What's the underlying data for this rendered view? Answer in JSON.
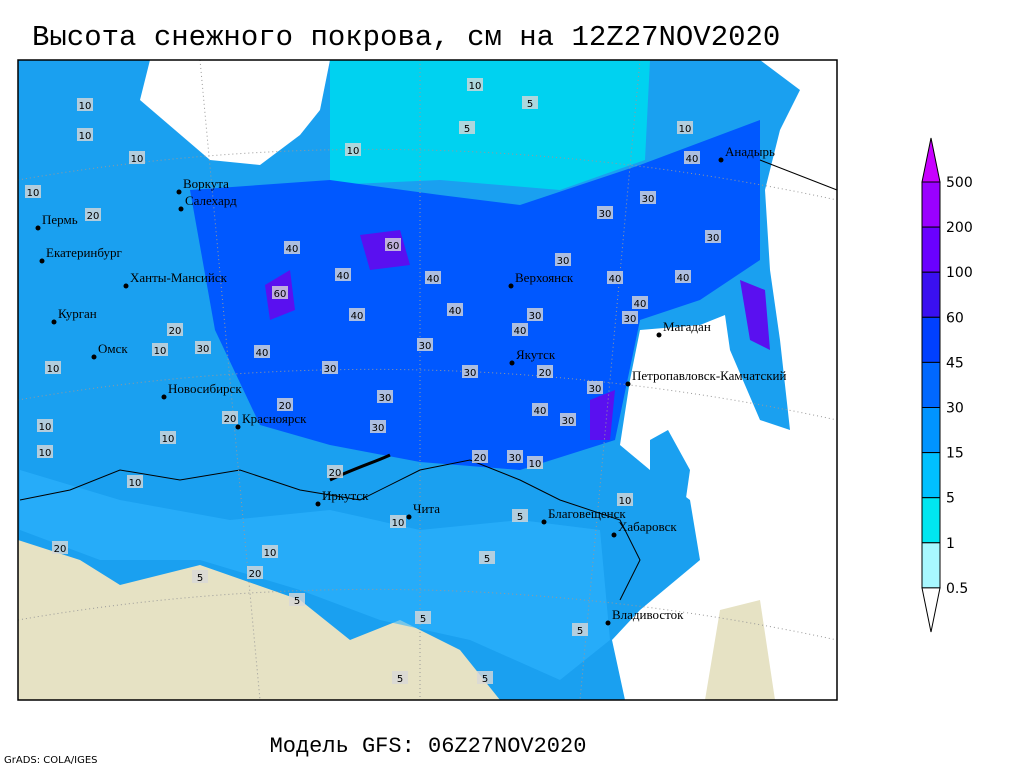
{
  "title": "Высота снежного покрова, см на 12Z27NOV2020",
  "model": "Модель GFS: 06Z27NOV2020",
  "credit": "GrADS: COLA/IGES",
  "cities": [
    "Воркута",
    "Салехард",
    "Пермь",
    "Екатеринбург",
    "Ханты-Мансийск",
    "Курган",
    "Омск",
    "Новосибирск",
    "Красноярск",
    "Иркутск",
    "Чита",
    "Благовещенск",
    "Хабаровск",
    "Владивосток",
    "Якутск",
    "Верхоянск",
    "Магадан",
    "Петропавловск-Камчатский",
    "Анадырь"
  ],
  "contour_labels": [
    10,
    10,
    10,
    10,
    20,
    10,
    5,
    5,
    10,
    30,
    30,
    40,
    10,
    30,
    40,
    60,
    40,
    40,
    30,
    40,
    40,
    60,
    40,
    40,
    30,
    40,
    40,
    30,
    20,
    30,
    10,
    40,
    30,
    30,
    20,
    30,
    10,
    20,
    30,
    30,
    40,
    30,
    30,
    10,
    20,
    10,
    10,
    20,
    30,
    10,
    20,
    10,
    5,
    10,
    5,
    5,
    20,
    10,
    5,
    5,
    5,
    5,
    5,
    20,
    10
  ],
  "colorbar": {
    "levels": [
      500,
      200,
      100,
      60,
      45,
      30,
      15,
      5,
      1,
      0.5
    ],
    "colors": [
      "#c800ff",
      "#9a00ff",
      "#6a00ff",
      "#3a10f0",
      "#0040ff",
      "#0068ff",
      "#0094ff",
      "#00c0ff",
      "#00e6f0",
      "#a8f8ff",
      "#ffffff"
    ]
  }
}
